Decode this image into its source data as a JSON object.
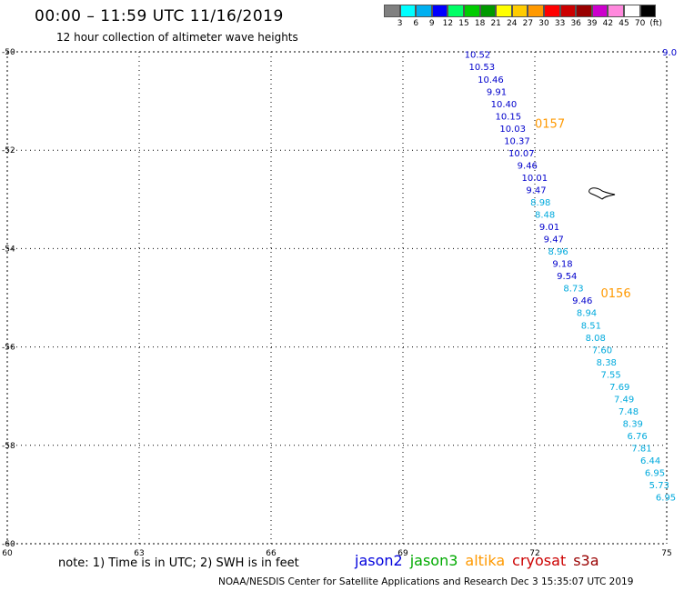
{
  "header": {
    "title": "00:00 – 11:59 UTC 11/16/2019",
    "subtitle": "12 hour collection of altimeter wave heights"
  },
  "legend": {
    "colors": [
      "#808080",
      "#00ffff",
      "#00b0f0",
      "#0000ff",
      "#00ff66",
      "#00cc00",
      "#009900",
      "#ffff00",
      "#ffcc00",
      "#ff9900",
      "#ff0000",
      "#cc0000",
      "#990000",
      "#cc00cc",
      "#ff88dd",
      "#ffffff",
      "#000000"
    ],
    "labels": [
      "3",
      "6",
      "9",
      "12",
      "15",
      "18",
      "21",
      "24",
      "27",
      "30",
      "33",
      "36",
      "39",
      "42",
      "45",
      "70",
      "(ft)"
    ]
  },
  "map": {
    "lon_range": [
      60,
      75
    ],
    "lat_range": [
      -60,
      -50
    ],
    "x_ticks": [
      "60",
      "63",
      "66",
      "69",
      "72",
      "75"
    ],
    "y_ticks": [
      "-50",
      "-52",
      "-54",
      "-56",
      "-58",
      "-60"
    ],
    "grid": "dotted"
  },
  "tracks": [
    {
      "label": "0157",
      "color": "#ff9900"
    },
    {
      "label": "0156",
      "color": "#ff9900"
    }
  ],
  "points": [
    {
      "v": "10.52",
      "lon": 70.4,
      "lat": -50.05,
      "c": "#0000cc"
    },
    {
      "v": "10.53",
      "lon": 70.5,
      "lat": -50.3,
      "c": "#0000cc"
    },
    {
      "v": "10.46",
      "lon": 70.7,
      "lat": -50.55,
      "c": "#0000cc"
    },
    {
      "v": "9.91",
      "lon": 70.9,
      "lat": -50.8,
      "c": "#0000cc"
    },
    {
      "v": "10.40",
      "lon": 71.0,
      "lat": -51.05,
      "c": "#0000cc"
    },
    {
      "v": "10.15",
      "lon": 71.1,
      "lat": -51.3,
      "c": "#0000cc"
    },
    {
      "v": "10.03",
      "lon": 71.2,
      "lat": -51.55,
      "c": "#0000cc"
    },
    {
      "v": "10.37",
      "lon": 71.3,
      "lat": -51.8,
      "c": "#0000cc"
    },
    {
      "v": "10.07",
      "lon": 71.4,
      "lat": -52.05,
      "c": "#0000cc"
    },
    {
      "v": "9.46",
      "lon": 71.6,
      "lat": -52.3,
      "c": "#0000cc"
    },
    {
      "v": "10.01",
      "lon": 71.7,
      "lat": -52.55,
      "c": "#0000cc"
    },
    {
      "v": "9.47",
      "lon": 71.8,
      "lat": -52.8,
      "c": "#0000cc"
    },
    {
      "v": "8.98",
      "lon": 71.9,
      "lat": -53.05,
      "c": "#00aadd"
    },
    {
      "v": "8.48",
      "lon": 72.0,
      "lat": -53.3,
      "c": "#00aadd"
    },
    {
      "v": "9.01",
      "lon": 72.1,
      "lat": -53.55,
      "c": "#0000cc"
    },
    {
      "v": "9.47",
      "lon": 72.2,
      "lat": -53.8,
      "c": "#0000cc"
    },
    {
      "v": "8.96",
      "lon": 72.3,
      "lat": -54.05,
      "c": "#00aadd"
    },
    {
      "v": "9.18",
      "lon": 72.4,
      "lat": -54.3,
      "c": "#0000cc"
    },
    {
      "v": "9.54",
      "lon": 72.5,
      "lat": -54.55,
      "c": "#0000cc"
    },
    {
      "v": "8.73",
      "lon": 72.65,
      "lat": -54.8,
      "c": "#00aadd"
    },
    {
      "v": "9.46",
      "lon": 72.85,
      "lat": -55.05,
      "c": "#0000cc"
    },
    {
      "v": "8.94",
      "lon": 72.95,
      "lat": -55.3,
      "c": "#00aadd"
    },
    {
      "v": "8.51",
      "lon": 73.05,
      "lat": -55.55,
      "c": "#00aadd"
    },
    {
      "v": "8.08",
      "lon": 73.15,
      "lat": -55.8,
      "c": "#00aadd"
    },
    {
      "v": "7.60",
      "lon": 73.3,
      "lat": -56.05,
      "c": "#00aadd"
    },
    {
      "v": "8.38",
      "lon": 73.4,
      "lat": -56.3,
      "c": "#00aadd"
    },
    {
      "v": "7.55",
      "lon": 73.5,
      "lat": -56.55,
      "c": "#00aadd"
    },
    {
      "v": "7.69",
      "lon": 73.7,
      "lat": -56.8,
      "c": "#00aadd"
    },
    {
      "v": "7.49",
      "lon": 73.8,
      "lat": -57.05,
      "c": "#00aadd"
    },
    {
      "v": "7.48",
      "lon": 73.9,
      "lat": -57.3,
      "c": "#00aadd"
    },
    {
      "v": "8.39",
      "lon": 74.0,
      "lat": -57.55,
      "c": "#00aadd"
    },
    {
      "v": "6.76",
      "lon": 74.1,
      "lat": -57.8,
      "c": "#00aadd"
    },
    {
      "v": "7.81",
      "lon": 74.2,
      "lat": -58.05,
      "c": "#00aadd"
    },
    {
      "v": "6.44",
      "lon": 74.4,
      "lat": -58.3,
      "c": "#00aadd"
    },
    {
      "v": "6.95",
      "lon": 74.5,
      "lat": -58.55,
      "c": "#00aadd"
    },
    {
      "v": "5.73",
      "lon": 74.6,
      "lat": -58.8,
      "c": "#00aadd"
    },
    {
      "v": "6.95",
      "lon": 74.75,
      "lat": -59.05,
      "c": "#00aadd"
    },
    {
      "v": "9.0",
      "lon": 74.9,
      "lat": -50.0,
      "c": "#0000cc"
    }
  ],
  "footer": {
    "note": "note: 1) Time is in UTC; 2) SWH is in feet",
    "credit": "NOAA/NESDIS Center for Satellite Applications and Research    Dec  3 15:35:07 UTC 2019",
    "satellites": [
      {
        "name": "jason2",
        "color": "#0000dd"
      },
      {
        "name": "jason3",
        "color": "#00aa00"
      },
      {
        "name": "altika",
        "color": "#ff9900"
      },
      {
        "name": "cryosat",
        "color": "#cc0000"
      },
      {
        "name": "s3a",
        "color": "#990000"
      }
    ]
  }
}
